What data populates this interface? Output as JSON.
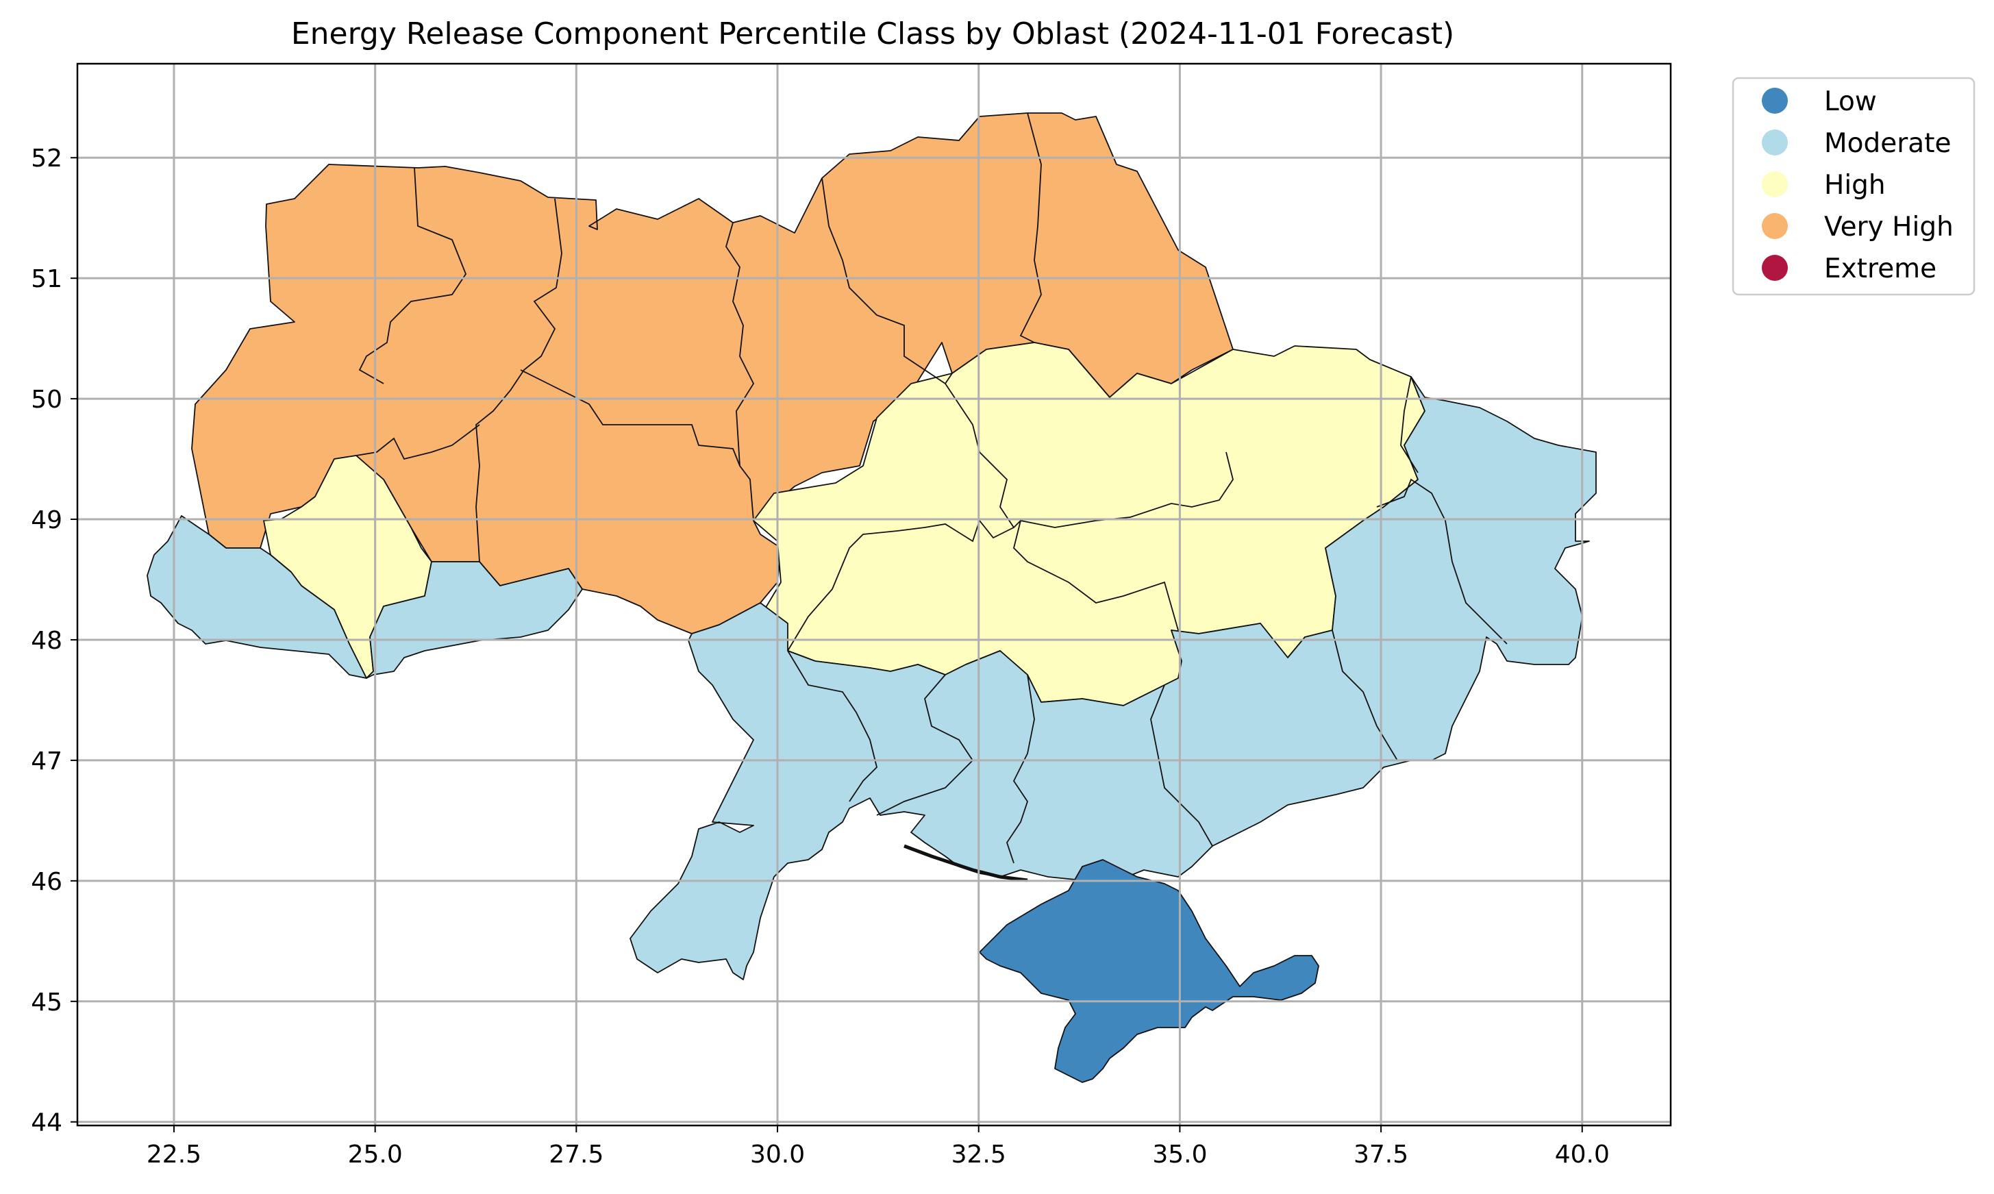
{
  "chart_data": {
    "type": "choropleth",
    "title": "Energy Release Component Percentile Class by Oblast (2024-11-01 Forecast)",
    "xlim": [
      21.3,
      41.1
    ],
    "ylim": [
      43.97,
      52.78
    ],
    "x_ticks": [
      "22.5",
      "25.0",
      "27.5",
      "30.0",
      "32.5",
      "35.0",
      "37.5",
      "40.0"
    ],
    "y_ticks": [
      "44",
      "45",
      "46",
      "47",
      "48",
      "49",
      "50",
      "51",
      "52"
    ],
    "grid": true,
    "legend_position": "outside-top-right",
    "legend": [
      {
        "label": "Low",
        "color": "#4087bd"
      },
      {
        "label": "Moderate",
        "color": "#b2dbe9"
      },
      {
        "label": "High",
        "color": "#fefec0"
      },
      {
        "label": "Very High",
        "color": "#f9b46f"
      },
      {
        "label": "Extreme",
        "color": "#b0163f"
      }
    ],
    "regions": [
      {
        "class": "Very High",
        "color": "#f9b46f"
      },
      {
        "class": "High",
        "color": "#fefec0"
      },
      {
        "class": "Moderate",
        "color": "#b2dbe9"
      },
      {
        "class": "Low",
        "color": "#4087bd"
      }
    ]
  }
}
